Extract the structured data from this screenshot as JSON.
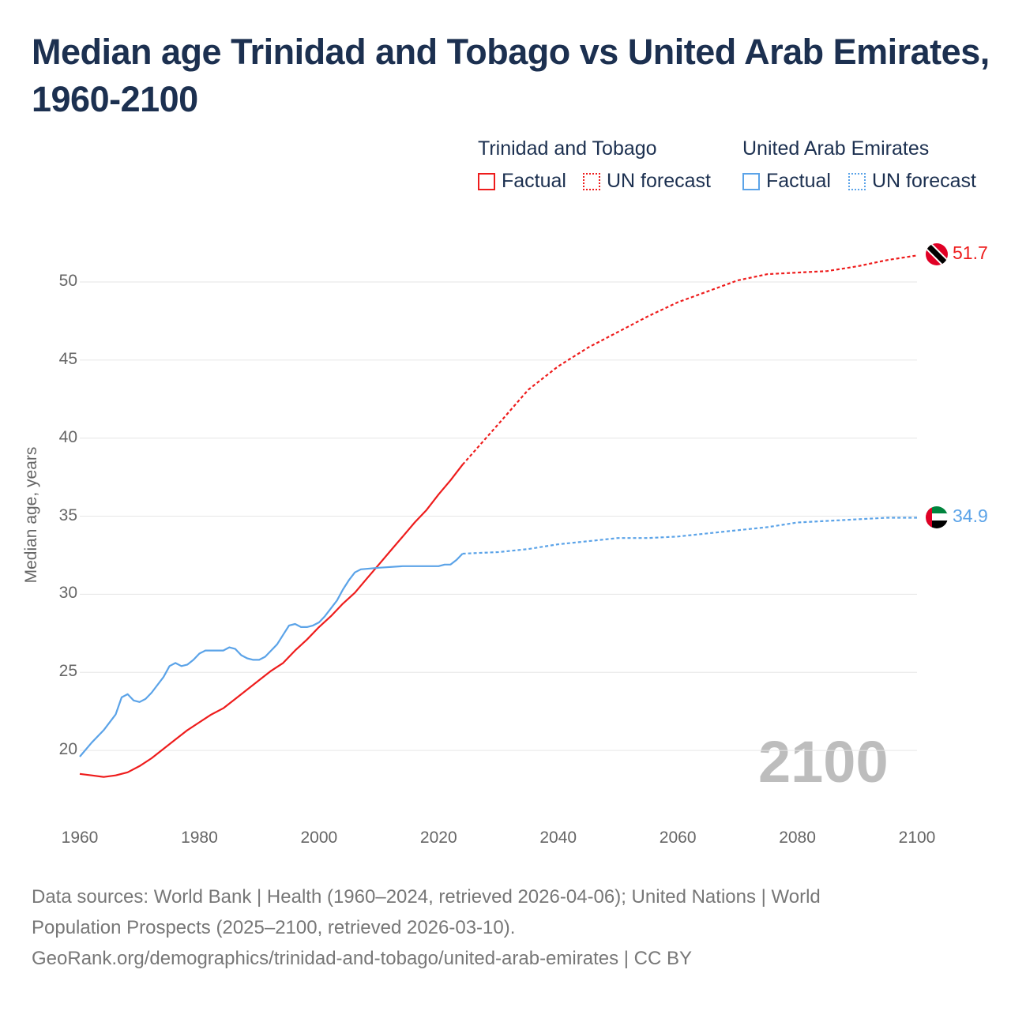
{
  "title": "Median age Trinidad and Tobago vs United Arab Emirates, 1960-2100",
  "legend": {
    "groups": [
      {
        "name": "Trinidad and Tobago",
        "factual": "Factual",
        "forecast": "UN forecast",
        "color": "#ee1c1c"
      },
      {
        "name": "United Arab Emirates",
        "factual": "Factual",
        "forecast": "UN forecast",
        "color": "#5ba3e8"
      }
    ]
  },
  "current_year": "2100",
  "end_labels": {
    "tt": "51.7",
    "uae": "34.9"
  },
  "footer": {
    "line1": "Data sources: World Bank | Health (1960–2024, retrieved 2026-04-06); United Nations | World",
    "line2": "Population Prospects (2025–2100, retrieved 2026-03-10).",
    "line3": "GeoRank.org/demographics/trinidad-and-tobago/united-arab-emirates | CC BY"
  },
  "chart_data": {
    "type": "line",
    "title": "Median age Trinidad and Tobago vs United Arab Emirates, 1960-2100",
    "xlabel": "",
    "ylabel": "Median age, years",
    "xlim": [
      1960,
      2100
    ],
    "ylim": [
      17,
      52
    ],
    "xticks": [
      "1960",
      "1980",
      "2000",
      "2020",
      "2040",
      "2060",
      "2080",
      "2100"
    ],
    "yticks": [
      "20",
      "25",
      "30",
      "35",
      "40",
      "45",
      "50"
    ],
    "grid": true,
    "legend_position": "top-right",
    "factual_end": 2024,
    "series": [
      {
        "name": "Trinidad and Tobago",
        "color": "#ee1c1c",
        "x": [
          1960,
          1962,
          1964,
          1966,
          1968,
          1970,
          1972,
          1974,
          1976,
          1978,
          1980,
          1982,
          1984,
          1986,
          1988,
          1990,
          1992,
          1994,
          1996,
          1998,
          2000,
          2002,
          2004,
          2006,
          2008,
          2010,
          2012,
          2014,
          2016,
          2018,
          2020,
          2022,
          2024,
          2030,
          2035,
          2040,
          2045,
          2050,
          2055,
          2060,
          2065,
          2070,
          2075,
          2080,
          2085,
          2090,
          2095,
          2100
        ],
        "values": [
          18.5,
          18.4,
          18.3,
          18.4,
          18.6,
          19.0,
          19.5,
          20.1,
          20.7,
          21.3,
          21.8,
          22.3,
          22.7,
          23.3,
          23.9,
          24.5,
          25.1,
          25.6,
          26.4,
          27.1,
          27.9,
          28.6,
          29.4,
          30.1,
          31.0,
          31.9,
          32.8,
          33.7,
          34.6,
          35.4,
          36.4,
          37.3,
          38.3,
          40.9,
          43.1,
          44.6,
          45.8,
          46.8,
          47.8,
          48.7,
          49.4,
          50.1,
          50.5,
          50.6,
          50.7,
          51.0,
          51.4,
          51.7
        ]
      },
      {
        "name": "United Arab Emirates",
        "color": "#5ba3e8",
        "x": [
          1960,
          1962,
          1964,
          1966,
          1967,
          1968,
          1969,
          1970,
          1971,
          1972,
          1974,
          1975,
          1976,
          1977,
          1978,
          1979,
          1980,
          1981,
          1984,
          1985,
          1986,
          1987,
          1988,
          1989,
          1990,
          1991,
          1992,
          1993,
          1994,
          1995,
          1996,
          1997,
          1998,
          1999,
          2000,
          2001,
          2002,
          2003,
          2004,
          2005,
          2006,
          2007,
          2010,
          2014,
          2020,
          2021,
          2022,
          2023,
          2024,
          2030,
          2035,
          2040,
          2045,
          2050,
          2055,
          2060,
          2065,
          2070,
          2075,
          2080,
          2085,
          2090,
          2095,
          2100
        ],
        "values": [
          19.6,
          20.5,
          21.3,
          22.3,
          23.4,
          23.6,
          23.2,
          23.1,
          23.3,
          23.7,
          24.7,
          25.4,
          25.6,
          25.4,
          25.5,
          25.8,
          26.2,
          26.4,
          26.4,
          26.6,
          26.5,
          26.1,
          25.9,
          25.8,
          25.8,
          26.0,
          26.4,
          26.8,
          27.4,
          28.0,
          28.1,
          27.9,
          27.9,
          28.0,
          28.2,
          28.6,
          29.1,
          29.6,
          30.3,
          30.9,
          31.4,
          31.6,
          31.7,
          31.8,
          31.8,
          31.9,
          31.9,
          32.2,
          32.6,
          32.7,
          32.9,
          33.2,
          33.4,
          33.6,
          33.6,
          33.7,
          33.9,
          34.1,
          34.3,
          34.6,
          34.7,
          34.8,
          34.9,
          34.9
        ]
      }
    ]
  }
}
